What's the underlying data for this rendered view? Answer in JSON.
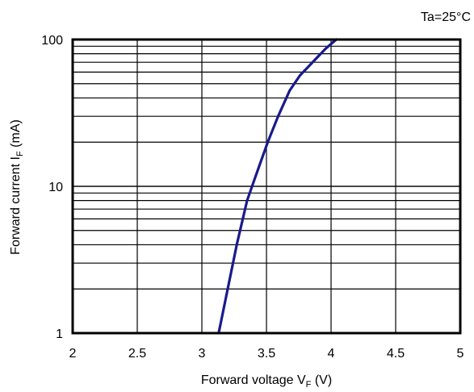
{
  "chart_data": {
    "type": "line",
    "annotation": "Ta=25°C",
    "xlabel": {
      "main": "Forward voltage V",
      "sub": "F",
      "unit": " (V)"
    },
    "ylabel": {
      "main": "Forward current  I",
      "sub": "F",
      "unit": "  (mA)"
    },
    "xlim": [
      2,
      5
    ],
    "ylim": [
      1,
      100
    ],
    "yscale": "log",
    "grid": true,
    "x_ticks": [
      {
        "v": 2,
        "label": "2"
      },
      {
        "v": 2.5,
        "label": "2.5"
      },
      {
        "v": 3,
        "label": "3"
      },
      {
        "v": 3.5,
        "label": "3.5"
      },
      {
        "v": 4,
        "label": "4"
      },
      {
        "v": 4.5,
        "label": "4.5"
      },
      {
        "v": 5,
        "label": "5"
      }
    ],
    "y_ticks": [
      {
        "v": 1,
        "label": "1"
      },
      {
        "v": 10,
        "label": "10"
      },
      {
        "v": 100,
        "label": "100"
      }
    ],
    "series_color": "#1a1a8c",
    "series": [
      {
        "points": [
          {
            "x": 3.13,
            "y": 1
          },
          {
            "x": 3.2,
            "y": 2
          },
          {
            "x": 3.27,
            "y": 4
          },
          {
            "x": 3.35,
            "y": 8
          },
          {
            "x": 3.42,
            "y": 12
          },
          {
            "x": 3.51,
            "y": 20
          },
          {
            "x": 3.59,
            "y": 30
          },
          {
            "x": 3.68,
            "y": 45
          },
          {
            "x": 3.76,
            "y": 57
          },
          {
            "x": 3.87,
            "y": 72
          },
          {
            "x": 3.96,
            "y": 87
          },
          {
            "x": 4.04,
            "y": 100
          }
        ]
      }
    ]
  }
}
